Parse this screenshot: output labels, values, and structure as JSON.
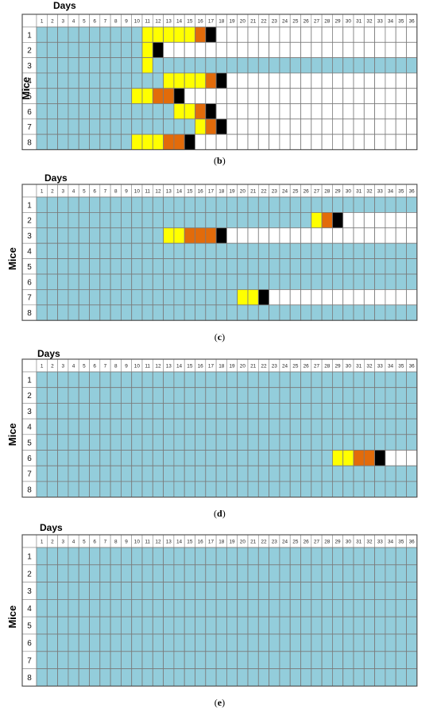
{
  "colors": {
    "healthy": "#93cddb",
    "early": "#ffff00",
    "advanced": "#e26b0a",
    "terminal": "#000000",
    "empty": "#ffffff"
  },
  "chart_data": [
    {
      "type": "heatmap",
      "panel_label": "(b)",
      "xlabel": "Days",
      "ylabel": "Mice",
      "days": [
        1,
        2,
        3,
        4,
        5,
        6,
        7,
        8,
        9,
        10,
        11,
        12,
        13,
        14,
        15,
        16,
        17,
        18,
        19,
        20,
        21,
        22,
        23,
        24,
        25,
        26,
        27,
        28,
        29,
        30,
        31,
        32,
        33,
        34,
        35,
        36
      ],
      "mice": [
        1,
        2,
        3,
        4,
        5,
        6,
        7,
        8
      ],
      "rows": [
        {
          "mouse": 1,
          "healthy_until": 10,
          "early": [
            11,
            12,
            13,
            14,
            15
          ],
          "advanced": [
            16
          ],
          "terminal": 17
        },
        {
          "mouse": 2,
          "healthy_until": 10,
          "early": [
            11
          ],
          "advanced": [],
          "terminal": 12
        },
        {
          "mouse": 3,
          "healthy_until": 10,
          "early": [
            11
          ],
          "advanced": [],
          "terminal": null,
          "healthy_after": [
            12,
            36
          ]
        },
        {
          "mouse": 4,
          "healthy_until": 12,
          "early": [
            13,
            14,
            15,
            16
          ],
          "advanced": [
            17
          ],
          "terminal": 18
        },
        {
          "mouse": 5,
          "healthy_until": 9,
          "early": [
            10,
            11
          ],
          "advanced": [
            12,
            13
          ],
          "terminal": 14
        },
        {
          "mouse": 6,
          "healthy_until": 13,
          "early": [
            14,
            15
          ],
          "advanced": [
            16
          ],
          "terminal": 17
        },
        {
          "mouse": 7,
          "healthy_until": 15,
          "early": [
            16
          ],
          "advanced": [
            17
          ],
          "terminal": 18
        },
        {
          "mouse": 8,
          "healthy_until": 9,
          "early": [
            10,
            11,
            12
          ],
          "advanced": [
            13,
            14
          ],
          "terminal": 15
        }
      ]
    },
    {
      "type": "heatmap",
      "panel_label": "(c)",
      "xlabel": "Days",
      "ylabel": "Mice",
      "days": [
        1,
        2,
        3,
        4,
        5,
        6,
        7,
        8,
        9,
        10,
        11,
        12,
        13,
        14,
        15,
        16,
        17,
        18,
        19,
        20,
        21,
        22,
        23,
        24,
        25,
        26,
        27,
        28,
        29,
        30,
        31,
        32,
        33,
        34,
        35,
        36
      ],
      "mice": [
        1,
        2,
        3,
        4,
        5,
        6,
        7,
        8
      ],
      "rows": [
        {
          "mouse": 1,
          "healthy_until": 36,
          "early": [],
          "advanced": [],
          "terminal": null
        },
        {
          "mouse": 2,
          "healthy_until": 26,
          "early": [
            27
          ],
          "advanced": [
            28
          ],
          "terminal": 29
        },
        {
          "mouse": 3,
          "healthy_until": 12,
          "early": [
            13,
            14
          ],
          "advanced": [
            15,
            16,
            17
          ],
          "terminal": 18
        },
        {
          "mouse": 4,
          "healthy_until": 36,
          "early": [],
          "advanced": [],
          "terminal": null
        },
        {
          "mouse": 5,
          "healthy_until": 36,
          "early": [],
          "advanced": [],
          "terminal": null
        },
        {
          "mouse": 6,
          "healthy_until": 36,
          "early": [],
          "advanced": [],
          "terminal": null
        },
        {
          "mouse": 7,
          "healthy_until": 19,
          "early": [
            20,
            21
          ],
          "advanced": [],
          "terminal": 22
        },
        {
          "mouse": 8,
          "healthy_until": 36,
          "early": [],
          "advanced": [],
          "terminal": null
        }
      ]
    },
    {
      "type": "heatmap",
      "panel_label": "(d)",
      "xlabel": "Days",
      "ylabel": "Mice",
      "days": [
        1,
        2,
        3,
        4,
        5,
        6,
        7,
        8,
        9,
        10,
        11,
        12,
        13,
        14,
        15,
        16,
        17,
        18,
        19,
        20,
        21,
        22,
        23,
        24,
        25,
        26,
        27,
        28,
        29,
        30,
        31,
        32,
        33,
        34,
        35,
        36
      ],
      "mice": [
        1,
        2,
        3,
        4,
        5,
        6,
        7,
        8
      ],
      "rows": [
        {
          "mouse": 1,
          "healthy_until": 36,
          "early": [],
          "advanced": [],
          "terminal": null
        },
        {
          "mouse": 2,
          "healthy_until": 36,
          "early": [],
          "advanced": [],
          "terminal": null
        },
        {
          "mouse": 3,
          "healthy_until": 36,
          "early": [],
          "advanced": [],
          "terminal": null
        },
        {
          "mouse": 4,
          "healthy_until": 36,
          "early": [],
          "advanced": [],
          "terminal": null
        },
        {
          "mouse": 5,
          "healthy_until": 36,
          "early": [],
          "advanced": [],
          "terminal": null
        },
        {
          "mouse": 6,
          "healthy_until": 28,
          "early": [
            29,
            30
          ],
          "advanced": [
            31,
            32
          ],
          "terminal": 33
        },
        {
          "mouse": 7,
          "healthy_until": 36,
          "early": [],
          "advanced": [],
          "terminal": null
        },
        {
          "mouse": 8,
          "healthy_until": 36,
          "early": [],
          "advanced": [],
          "terminal": null
        }
      ]
    },
    {
      "type": "heatmap",
      "panel_label": "(e)",
      "xlabel": "Days",
      "ylabel": "Mice",
      "days": [
        1,
        2,
        3,
        4,
        5,
        6,
        7,
        8,
        9,
        10,
        11,
        12,
        13,
        14,
        15,
        16,
        17,
        18,
        19,
        20,
        21,
        22,
        23,
        24,
        25,
        26,
        27,
        28,
        29,
        30,
        31,
        32,
        33,
        34,
        35,
        36
      ],
      "mice": [
        1,
        2,
        3,
        4,
        5,
        6,
        7,
        8
      ],
      "rows": [
        {
          "mouse": 1,
          "healthy_until": 36,
          "early": [],
          "advanced": [],
          "terminal": null
        },
        {
          "mouse": 2,
          "healthy_until": 36,
          "early": [],
          "advanced": [],
          "terminal": null
        },
        {
          "mouse": 3,
          "healthy_until": 36,
          "early": [],
          "advanced": [],
          "terminal": null
        },
        {
          "mouse": 4,
          "healthy_until": 36,
          "early": [],
          "advanced": [],
          "terminal": null
        },
        {
          "mouse": 5,
          "healthy_until": 36,
          "early": [],
          "advanced": [],
          "terminal": null
        },
        {
          "mouse": 6,
          "healthy_until": 36,
          "early": [],
          "advanced": [],
          "terminal": null
        },
        {
          "mouse": 7,
          "healthy_until": 36,
          "early": [],
          "advanced": [],
          "terminal": null
        },
        {
          "mouse": 8,
          "healthy_until": 36,
          "early": [],
          "advanced": [],
          "terminal": null
        }
      ]
    }
  ]
}
